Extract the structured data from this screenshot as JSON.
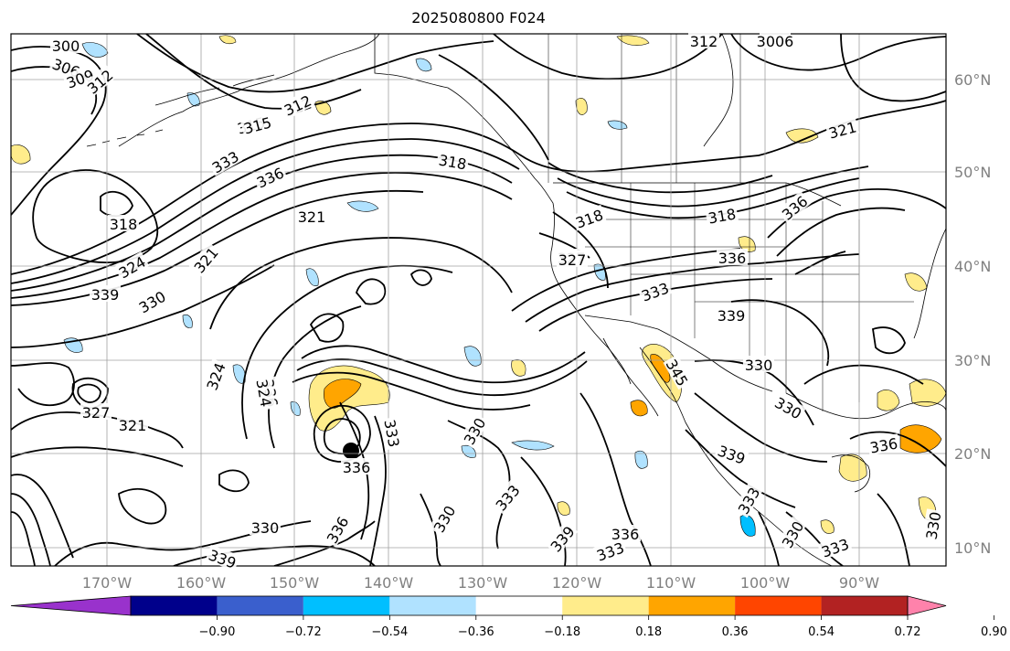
{
  "title": "2025080800 F024",
  "lon_labels": [
    "170°W",
    "160°W",
    "150°W",
    "140°W",
    "130°W",
    "120°W",
    "110°W",
    "100°W",
    "90°W"
  ],
  "lat_labels": [
    "60°N",
    "50°N",
    "40°N",
    "30°N",
    "20°N",
    "10°N"
  ],
  "colorbar": {
    "ticks": [
      "−0.90",
      "−0.72",
      "−0.54",
      "−0.36",
      "−0.18",
      "0.18",
      "0.36",
      "0.54",
      "0.72",
      "0.90"
    ],
    "colors": [
      "#9932cc",
      "#00008b",
      "#3a5fcd",
      "#00bfff",
      "#b0e2ff",
      "#ffffff",
      "#ffec8b",
      "#ffa500",
      "#ff4500",
      "#b22222",
      "#ff82ab"
    ]
  },
  "contour_labels": [
    "300",
    "306",
    "309",
    "312",
    "315",
    "312",
    "3006",
    "312",
    "321",
    "315",
    "312",
    "318",
    "333",
    "336",
    "321",
    "318",
    "318",
    "318",
    "336",
    "336",
    "324",
    "327",
    "321",
    "327",
    "339",
    "330",
    "333",
    "336",
    "339",
    "324",
    "324",
    "327",
    "321",
    "330",
    "336",
    "333",
    "330",
    "333",
    "330",
    "339",
    "330",
    "345",
    "336",
    "339",
    "333",
    "336",
    "330",
    "333",
    "336",
    "339",
    "330",
    "333",
    "330"
  ]
}
